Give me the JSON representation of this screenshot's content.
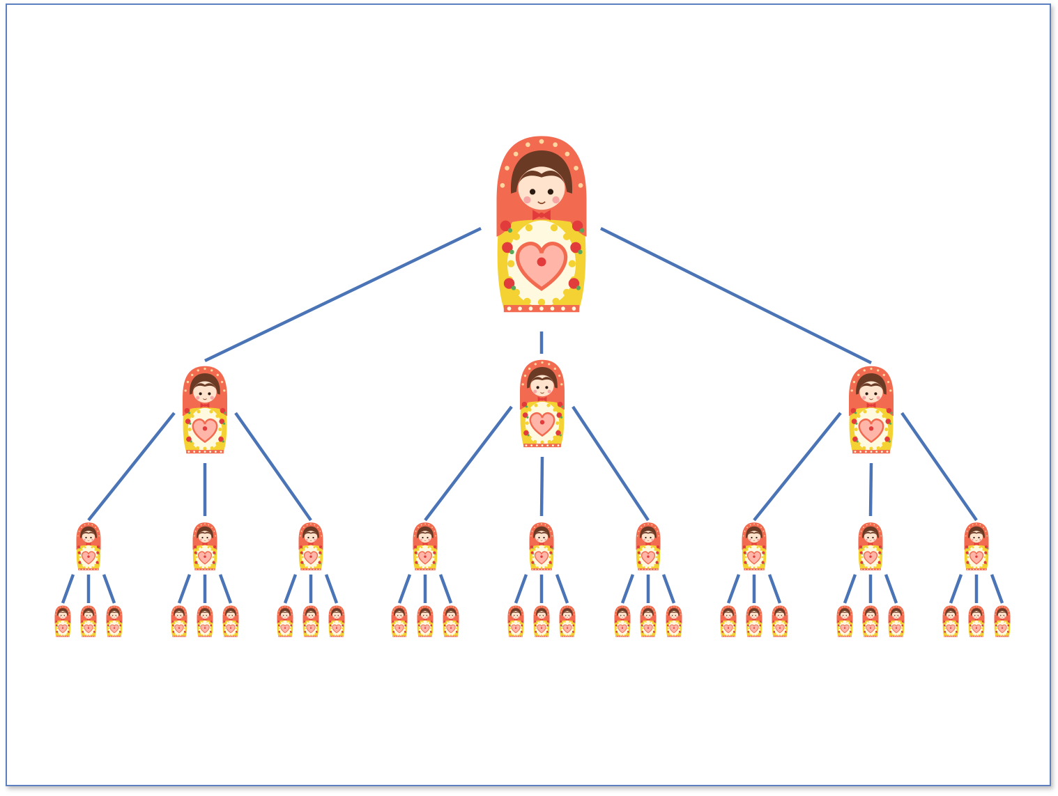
{
  "diagram": {
    "type": "tree",
    "branching_factor": 3,
    "levels": 4,
    "node_icon": "matryoshka-doll-icon",
    "connector_color": "#4a74b5",
    "frame_color": "#5b7fbf",
    "palette": {
      "scarf": "#f26b50",
      "scarf_dots": "#ffd6a0",
      "hair": "#6b3a25",
      "face": "#ffe3cc",
      "cheek": "#f7a6a6",
      "body": "#fff9e0",
      "body_dots": "#f5d233",
      "body_edge": "#f5d233",
      "heart": "#f26b50",
      "heart_fill": "#ffb6a8",
      "rose": "#e23b3b",
      "leaf": "#5aa75a",
      "base": "#f26b50"
    }
  }
}
